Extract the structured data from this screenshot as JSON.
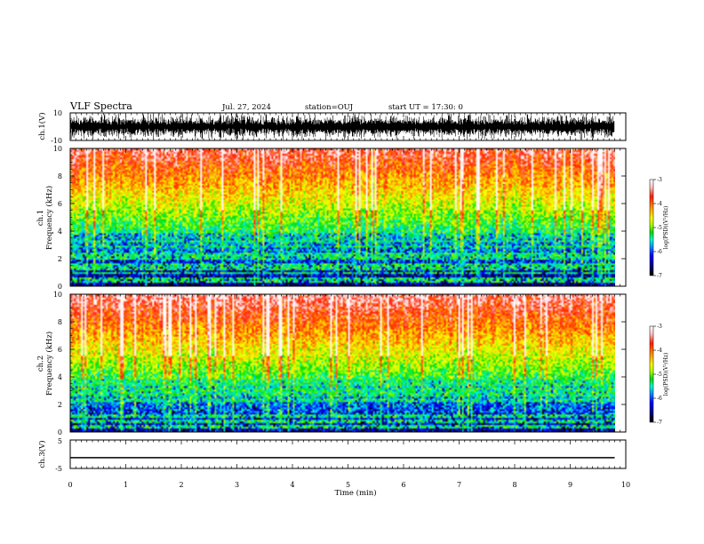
{
  "header": {
    "title": "VLF Spectra",
    "date": "Jul. 27, 2024",
    "station": "station=OUJ",
    "start": "start UT =  17:30: 0"
  },
  "colors": {
    "palette": [
      "#000000",
      "#000090",
      "#0000ff",
      "#00a0ff",
      "#00ffd0",
      "#00e000",
      "#b0ff00",
      "#ffff00",
      "#ffa000",
      "#ff2000",
      "#ffc8c8",
      "#ffffff"
    ]
  },
  "chart_data": [
    {
      "type": "line",
      "panel": "ch1-waveform",
      "ylabel": "ch.1(V)",
      "ylim": [
        -10,
        10
      ],
      "yticks": [
        "10",
        "-10"
      ],
      "xlim": [
        0,
        10
      ],
      "description_values": "dense noisy waveform oscillating between about -10 and 10 V from 0 to ~9.8 min"
    },
    {
      "type": "heatmap",
      "panel": "ch1-spectrogram",
      "ylabel_line1": "ch.1",
      "ylabel_line2": "Frequency (kHz)",
      "ylim": [
        0,
        10
      ],
      "yticks": [
        "0",
        "2",
        "4",
        "6",
        "8",
        "10"
      ],
      "xlim": [
        0,
        9.8
      ],
      "colorbar_label": "log(PSD)(V²/Hz)",
      "colorbar_ticks": [
        "-3",
        "-4",
        "-5",
        "-6",
        "-7"
      ],
      "colorbar_range": [
        -7,
        -3
      ]
    },
    {
      "type": "heatmap",
      "panel": "ch2-spectrogram",
      "ylabel_line1": "ch.2",
      "ylabel_line2": "Frequency (kHz)",
      "ylim": [
        0,
        10
      ],
      "yticks": [
        "0",
        "2",
        "4",
        "6",
        "8",
        "10"
      ],
      "xlim": [
        0,
        9.8
      ],
      "colorbar_label": "log(PSD)(V²/Hz)",
      "colorbar_ticks": [
        "-3",
        "-4",
        "-5",
        "-6",
        "-7"
      ],
      "colorbar_range": [
        -7,
        -3
      ]
    },
    {
      "type": "line",
      "panel": "ch3-waveform",
      "ylabel": "ch.3(V)",
      "ylim": [
        -5,
        5
      ],
      "yticks": [
        "5",
        "-5"
      ],
      "x": [
        0,
        9.8
      ],
      "y": [
        -1.2,
        -1.2
      ],
      "xlabel": "Time (min)",
      "xticks": [
        "0",
        "1",
        "2",
        "3",
        "4",
        "5",
        "6",
        "7",
        "8",
        "9",
        "10"
      ],
      "xlim": [
        0,
        10
      ]
    }
  ]
}
